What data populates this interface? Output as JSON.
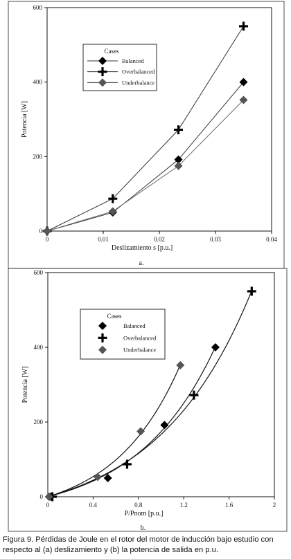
{
  "chart_data": [
    {
      "type": "line",
      "panel_label": "a.",
      "xlabel": "Deslizamiento s [p.u.]",
      "ylabel": "Potencia [W]",
      "xlim": [
        0,
        0.04
      ],
      "ylim": [
        0,
        600
      ],
      "xticks": [
        0,
        0.01,
        0.02,
        0.03,
        0.04
      ],
      "xtick_labels": [
        "0",
        "0.01",
        "0.02",
        "0.03",
        "0.04"
      ],
      "yticks": [
        0,
        200,
        400,
        600
      ],
      "ytick_labels": [
        "0",
        "200",
        "400",
        "600"
      ],
      "legend_title": "Cases",
      "legend_position": "upper-left",
      "series": [
        {
          "name": "Balanced",
          "marker": "diamond",
          "color": "#000000",
          "x": [
            0,
            0.0117,
            0.0234,
            0.035
          ],
          "y": [
            0,
            50,
            192,
            400
          ]
        },
        {
          "name": "Overbalanced",
          "marker": "plus",
          "color": "#000000",
          "x": [
            0,
            0.0117,
            0.0234,
            0.035
          ],
          "y": [
            0,
            87,
            272,
            550
          ]
        },
        {
          "name": "Underbalance",
          "marker": "diamond",
          "color": "#555555",
          "x": [
            0,
            0.0117,
            0.0234,
            0.035
          ],
          "y": [
            0,
            53,
            175,
            352
          ]
        }
      ]
    },
    {
      "type": "scatter",
      "panel_label": "b.",
      "xlabel": "P/Pnom [p.u.]",
      "ylabel": "Potencia [W]",
      "xlim": [
        0,
        2
      ],
      "ylim": [
        0,
        600
      ],
      "xticks": [
        0,
        0.4,
        0.8,
        1.2,
        1.6,
        2
      ],
      "xtick_labels": [
        "0",
        "0.4",
        "0.8",
        "1.2",
        "1.6",
        "2"
      ],
      "yticks": [
        0,
        200,
        400,
        600
      ],
      "ytick_labels": [
        "0",
        "200",
        "400",
        "600"
      ],
      "legend_title": "Cases",
      "legend_position": "upper-left",
      "series": [
        {
          "name": "Balanced",
          "marker": "diamond",
          "color": "#000000",
          "x": [
            0.02,
            0.53,
            1.03,
            1.48
          ],
          "y": [
            0,
            50,
            192,
            400
          ]
        },
        {
          "name": "Overbalanced",
          "marker": "plus",
          "color": "#000000",
          "x": [
            0.04,
            0.7,
            1.29,
            1.8
          ],
          "y": [
            0,
            87,
            272,
            550
          ]
        },
        {
          "name": "Underbalance",
          "marker": "diamond",
          "color": "#555555",
          "x": [
            0.01,
            0.44,
            0.82,
            1.17
          ],
          "y": [
            0,
            53,
            175,
            352
          ]
        }
      ]
    }
  ],
  "caption": "Figura 9. Pérdidas de Joule en el rotor del motor de inducción bajo estudio con respecto al (a) deslizamiento y (b) la potencia de salida en p.u."
}
